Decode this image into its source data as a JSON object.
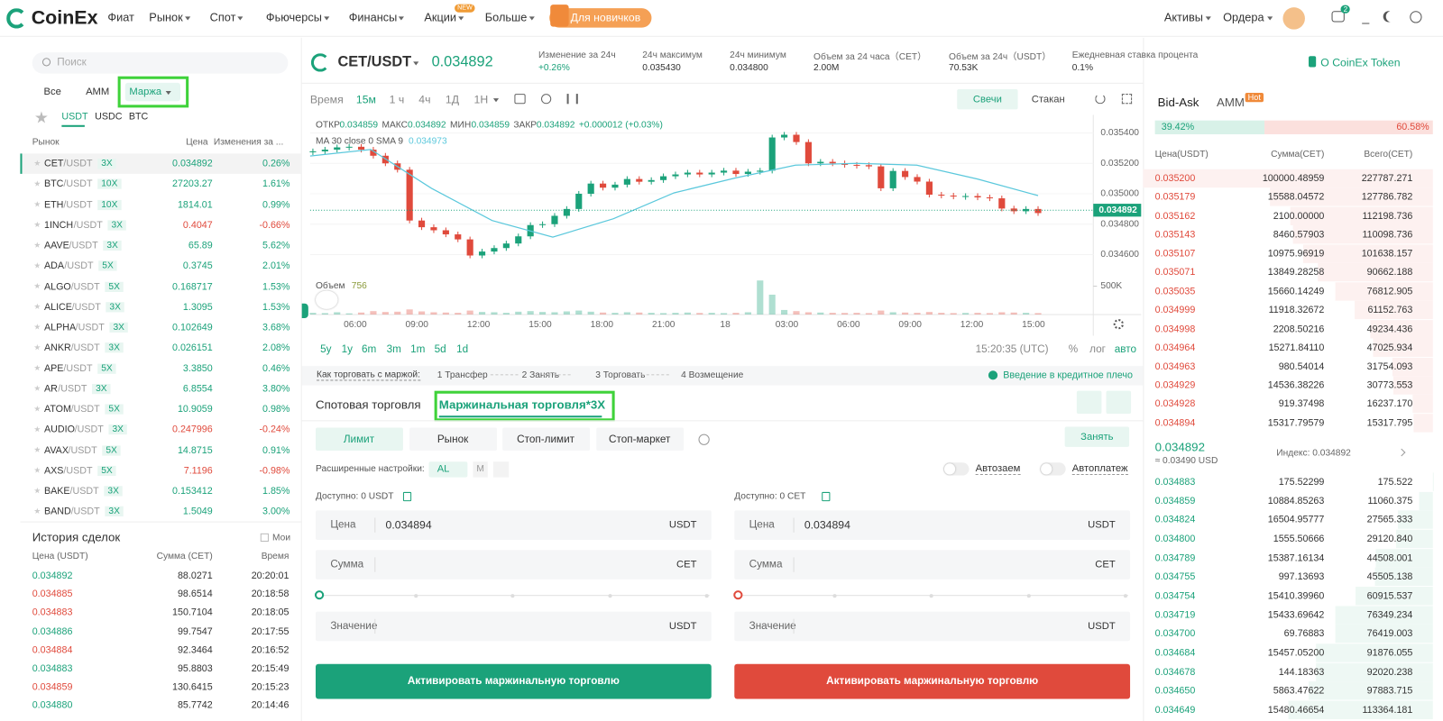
{
  "header": {
    "logo": "CoinEx",
    "nav": [
      "Фиат",
      "Рынок",
      "Спот",
      "Фьючерсы",
      "Финансы",
      "Акции",
      "Больше"
    ],
    "new_badge": "NEW",
    "promo": "Для новичков",
    "right": [
      "Активы",
      "Ордера"
    ],
    "notif_count": 2
  },
  "markets": {
    "search": "Поиск",
    "tabs": [
      "Все",
      "AMM",
      "Маржа"
    ],
    "quotes": [
      "USDT",
      "USDC",
      "BTC"
    ],
    "columns": [
      "Рынок",
      "Цена",
      "Изменения за ..."
    ],
    "rows": [
      [
        "CET",
        "/USDT",
        "3X",
        "0.034892",
        "0.26%"
      ],
      [
        "BTC",
        "/USDT",
        "10X",
        "27203.27",
        "1.61%"
      ],
      [
        "ETH",
        "/USDT",
        "10X",
        "1814.01",
        "0.99%"
      ],
      [
        "1INCH",
        "/USDT",
        "3X",
        "0.4047",
        "-0.66%"
      ],
      [
        "AAVE",
        "/USDT",
        "3X",
        "65.89",
        "5.62%"
      ],
      [
        "ADA",
        "/USDT",
        "5X",
        "0.3745",
        "2.01%"
      ],
      [
        "ALGO",
        "/USDT",
        "5X",
        "0.168717",
        "1.53%"
      ],
      [
        "ALICE",
        "/USDT",
        "3X",
        "1.3095",
        "1.53%"
      ],
      [
        "ALPHA",
        "/USDT",
        "3X",
        "0.102649",
        "3.68%"
      ],
      [
        "ANKR",
        "/USDT",
        "3X",
        "0.026151",
        "2.08%"
      ],
      [
        "APE",
        "/USDT",
        "5X",
        "3.3850",
        "0.46%"
      ],
      [
        "AR",
        "/USDT",
        "3X",
        "6.8554",
        "3.80%"
      ],
      [
        "ATOM",
        "/USDT",
        "5X",
        "10.9059",
        "0.98%"
      ],
      [
        "AUDIO",
        "/USDT",
        "3X",
        "0.247996",
        "-0.24%"
      ],
      [
        "AVAX",
        "/USDT",
        "5X",
        "14.8715",
        "0.91%"
      ],
      [
        "AXS",
        "/USDT",
        "5X",
        "7.1196",
        "-0.98%"
      ],
      [
        "BAKE",
        "/USDT",
        "3X",
        "0.153412",
        "1.85%"
      ],
      [
        "BAND",
        "/USDT",
        "3X",
        "1.5049",
        "3.00%"
      ]
    ]
  },
  "trades": {
    "title": "История сделок",
    "mine": "Мои",
    "columns": [
      "Цена (USDT)",
      "Сумма (CET)",
      "Время"
    ],
    "rows": [
      {
        "price": "0.034892",
        "amount": "88.0271",
        "time": "20:20:01",
        "color": "#1ba27a"
      },
      {
        "price": "0.034885",
        "amount": "98.6514",
        "time": "20:18:58",
        "color": "#e04a3c"
      },
      {
        "price": "0.034883",
        "amount": "150.7104",
        "time": "20:18:05",
        "color": "#e04a3c"
      },
      {
        "price": "0.034886",
        "amount": "99.7547",
        "time": "20:17:55",
        "color": "#1ba27a"
      },
      {
        "price": "0.034884",
        "amount": "92.3464",
        "time": "20:16:52",
        "color": "#e04a3c"
      },
      {
        "price": "0.034883",
        "amount": "95.8803",
        "time": "20:15:49",
        "color": "#1ba27a"
      },
      {
        "price": "0.034859",
        "amount": "130.6415",
        "time": "20:15:23",
        "color": "#e04a3c"
      },
      {
        "price": "0.034880",
        "amount": "85.7742",
        "time": "20:14:46",
        "color": "#1ba27a"
      }
    ]
  },
  "pair": {
    "name": "CET/USDT",
    "price": "0.034892",
    "stats": [
      [
        "Изменение за 24ч",
        "+0.26%"
      ],
      [
        "24ч максимум",
        "0.035430"
      ],
      [
        "24ч минимум",
        "0.034800"
      ],
      [
        "Объем за 24 часа（CET）",
        "2.00M"
      ],
      [
        "Объем за 24ч（USDT）",
        "70.53K"
      ],
      [
        "Ежедневная ставка процента",
        "0.1%"
      ]
    ],
    "token_link": "О CoinEx Token"
  },
  "toolbar": {
    "intervals": [
      "Время",
      "15м",
      "1 ч",
      "4ч",
      "1Д",
      "1Н"
    ],
    "views": [
      "Свечи",
      "Стакан"
    ],
    "ranges": [
      "5y",
      "1y",
      "6m",
      "3m",
      "1m",
      "5d",
      "1d"
    ],
    "clock": "15:20:35 (UTC)",
    "scales": [
      "%",
      "лог",
      "авто"
    ]
  },
  "chart_data": {
    "type": "candlestick",
    "colors": {
      "up": "#1ba27a",
      "down": "#e04a3c"
    },
    "legend": {
      "items": [
        [
          "ОТКР",
          0.034859
        ],
        [
          "МАКС",
          0.034892
        ],
        [
          "МИН",
          0.034859
        ],
        [
          "ЗАКР",
          0.034892
        ]
      ],
      "change": "+0.000012 (+0.03%)"
    },
    "closes": [
      0.035279,
      0.03529,
      0.035305,
      0.035309,
      0.03529,
      0.03525,
      0.0352,
      0.035158,
      0.034824,
      0.03478,
      0.03476,
      0.034733,
      0.0347,
      0.034594,
      0.03462,
      0.034643,
      0.034673,
      0.03472,
      0.034794,
      0.0348,
      0.034855,
      0.0349,
      0.035,
      0.035067,
      0.03504,
      0.03506,
      0.035097,
      0.035079,
      0.03509,
      0.035115,
      0.035127,
      0.035139,
      0.035127,
      0.035139,
      0.035152,
      0.03513,
      0.035145,
      0.035152,
      0.03537,
      0.035388,
      0.03534,
      0.0352,
      0.03521,
      0.0352,
      0.03519,
      0.035188,
      0.03518,
      0.035036,
      0.03515,
      0.03511,
      0.03508,
      0.034994,
      0.034988,
      0.034982,
      0.034985,
      0.034976,
      0.03497,
      0.034903,
      0.034885,
      0.0349,
      0.034873
    ],
    "ma": {
      "name": "MA 30 close 0 SMA 9",
      "value": 0.034973,
      "color": "#5bc8dc",
      "values": [
        0.035248,
        0.035291,
        0.035036,
        0.034824,
        0.034715,
        0.034836,
        0.035006,
        0.035103,
        0.035188,
        0.0352,
        0.035188,
        0.035097,
        0.034988
      ]
    },
    "volume": {
      "label": "Объем",
      "value": 756,
      "ylim": [
        0,
        600000
      ],
      "yticks": [
        {
          "value": 500000,
          "label": "500K"
        }
      ],
      "values": [
        30000,
        25000,
        40000,
        20000,
        35000,
        60000,
        45000,
        50000,
        90000,
        55000,
        40000,
        35000,
        30000,
        70000,
        45000,
        40000,
        30000,
        50000,
        60000,
        45000,
        40000,
        55000,
        70000,
        50000,
        35000,
        30000,
        40000,
        35000,
        30000,
        25000,
        30000,
        35000,
        28000,
        30000,
        25000,
        30000,
        40000,
        600000,
        350000,
        80000,
        60000,
        40000,
        35000,
        30000,
        28000,
        30000,
        25000,
        70000,
        40000,
        35000,
        30000,
        45000,
        30000,
        25000,
        28000,
        30000,
        25000,
        40000,
        35000,
        30000,
        25000
      ]
    },
    "ylim": [
      0.03446,
      0.0355
    ],
    "yticks": [
      {
        "value": 0.0354,
        "label": "0.035400"
      },
      {
        "value": 0.0352,
        "label": "0.035200"
      },
      {
        "value": 0.035,
        "label": "0.035000"
      },
      {
        "value": 0.0348,
        "label": "0.034800"
      },
      {
        "value": 0.0346,
        "label": "0.034600"
      }
    ],
    "last_price": 0.034892,
    "x_labels": [
      "06:00",
      "09:00",
      "12:00",
      "15:00",
      "18:00",
      "21:00",
      "18",
      "03:00",
      "06:00",
      "09:00",
      "12:00",
      "15:00"
    ]
  },
  "steps": {
    "intro": "Как торговать с маржой:",
    "items": [
      "1  Трансфер",
      "2  Занять",
      "3  Торговать",
      "4  Возмещение"
    ],
    "link": "Введение в кредитное плечо"
  },
  "trade": {
    "tabs": [
      "Спотовая торговля",
      "Маржинальная торговля*3X"
    ],
    "order_types": [
      "Лимит",
      "Рынок",
      "Стоп-лимит",
      "Стоп-маркет"
    ],
    "borrow": "Занять",
    "advanced": "Расширенные настройки:",
    "al": "AL",
    "m": "M",
    "toggles": [
      "Автозаем",
      "Автоплатеж"
    ],
    "panels": [
      {
        "available": "Доступно: 0 USDT",
        "price_label": "Цена",
        "price": "0.034894",
        "price_unit": "USDT",
        "amount_label": "Сумма",
        "amount_unit": "CET",
        "value_label": "Значение",
        "value_unit": "USDT",
        "button": "Активировать маржинальную торговлю",
        "color": "#1ba27a"
      },
      {
        "available": "Доступно: 0 CET",
        "price_label": "Цена",
        "price": "0.034894",
        "price_unit": "USDT",
        "amount_label": "Сумма",
        "amount_unit": "CET",
        "value_label": "Значение",
        "value_unit": "USDT",
        "button": "Активировать маржинальную торговлю",
        "color": "#e04a3c"
      }
    ]
  },
  "orderbook": {
    "tabs": [
      "Bid-Ask",
      "AMM"
    ],
    "hot": "Hot",
    "bid_ratio": {
      "value": 39.42,
      "label": "39.42%"
    },
    "ask_ratio": {
      "value": 60.58,
      "label": "60.58%"
    },
    "columns": [
      "Цена(USDT)",
      "Сумма(CET)",
      "Всего(CET)"
    ],
    "asks": [
      [
        "0.035200",
        "100000.48959",
        "227787.271"
      ],
      [
        "0.035179",
        "15588.04572",
        "127786.782"
      ],
      [
        "0.035162",
        "2100.00000",
        "112198.736"
      ],
      [
        "0.035143",
        "8460.57903",
        "110098.736"
      ],
      [
        "0.035107",
        "10975.96919",
        "101638.157"
      ],
      [
        "0.035071",
        "13849.28258",
        "90662.188"
      ],
      [
        "0.035035",
        "15660.14249",
        "76812.905"
      ],
      [
        "0.034999",
        "11918.32672",
        "61152.763"
      ],
      [
        "0.034998",
        "2208.50216",
        "49234.436"
      ],
      [
        "0.034964",
        "15271.84110",
        "47025.934"
      ],
      [
        "0.034963",
        "980.54014",
        "31754.093"
      ],
      [
        "0.034929",
        "14536.38226",
        "30773.553"
      ],
      [
        "0.034928",
        "919.37498",
        "16237.170"
      ],
      [
        "0.034894",
        "15317.79579",
        "15317.795"
      ]
    ],
    "mid": "0.034892",
    "mid_usd": "≈ 0.03490 USD",
    "index": "Индекс: 0.034892",
    "bids": [
      [
        "0.034883",
        "175.52299",
        "175.522"
      ],
      [
        "0.034859",
        "10884.85263",
        "11060.375"
      ],
      [
        "0.034824",
        "16504.95777",
        "27565.333"
      ],
      [
        "0.034800",
        "1555.50666",
        "29120.840"
      ],
      [
        "0.034789",
        "15387.16134",
        "44508.001"
      ],
      [
        "0.034755",
        "997.13693",
        "45505.138"
      ],
      [
        "0.034754",
        "15410.39960",
        "60915.537"
      ],
      [
        "0.034719",
        "15433.69642",
        "76349.234"
      ],
      [
        "0.034700",
        "69.76883",
        "76419.003"
      ],
      [
        "0.034684",
        "15457.05200",
        "91876.055"
      ],
      [
        "0.034678",
        "144.18363",
        "92020.238"
      ],
      [
        "0.034650",
        "5863.47622",
        "97883.715"
      ],
      [
        "0.034649",
        "15480.46654",
        "113364.181"
      ]
    ]
  }
}
